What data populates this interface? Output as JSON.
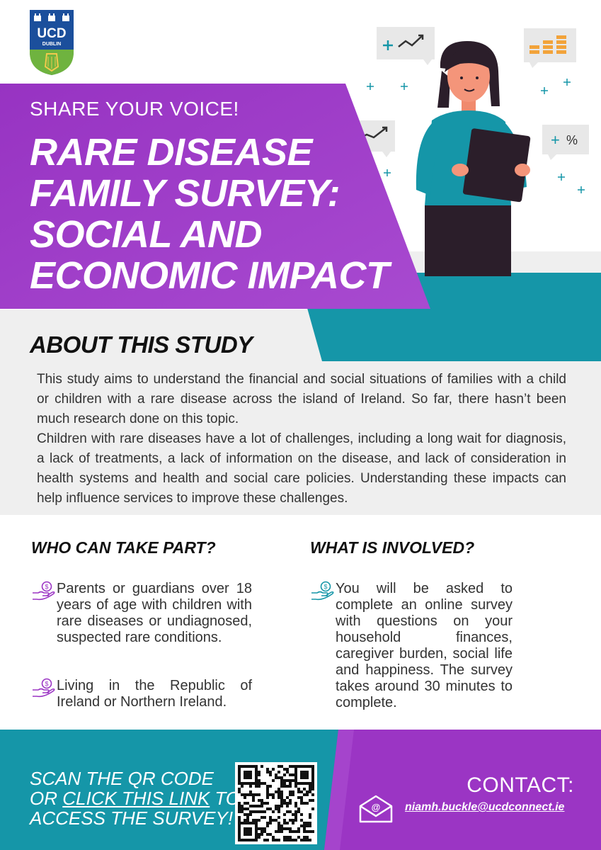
{
  "logo": {
    "text": "UCD",
    "subtext": "DUBLIN"
  },
  "header": {
    "kicker": "SHARE YOUR VOICE!",
    "title_lines": [
      "RARE DISEASE",
      "FAMILY SURVEY:",
      "SOCIAL AND",
      "ECONOMIC IMPACT"
    ]
  },
  "illustration": {
    "chips": [
      "+",
      "%"
    ]
  },
  "about": {
    "title": "ABOUT THIS STUDY",
    "paragraph1": "This study aims to understand the financial and social situations of families with a child or children with a rare disease across the island of Ireland. So far, there hasn’t been much research done on this topic.",
    "paragraph2": "Children with rare diseases have a lot of challenges, including a long wait for diagnosis, a lack of treatments, a lack of information on the disease, and lack of consideration in health systems and health and social care policies. Understanding these impacts can help influence services to improve these challenges."
  },
  "who": {
    "title": "WHO CAN TAKE PART?",
    "items": [
      "Parents or guardians over 18 years of age with children with rare diseases or undiagnosed, suspected rare conditions.",
      "Living in the Republic of Ireland or Northern Ireland."
    ]
  },
  "what": {
    "title": "WHAT IS INVOLVED?",
    "items": [
      "You will be asked to complete an online survey with questions on your household finances, caregiver burden, social life and happiness. The survey takes around 30 minutes to complete."
    ]
  },
  "footer": {
    "scan_line1": "SCAN THE QR CODE",
    "scan_or": "OR ",
    "scan_link": "CLICK THIS LINK",
    "scan_to": " TO",
    "scan_line3": "ACCESS THE SURVEY!",
    "contact_label": "CONTACT:",
    "email": "niamh.buckle@ucdconnect.ie"
  },
  "colors": {
    "purple": "#9b35c4",
    "purple_light": "#a544cc",
    "teal": "#1596a8",
    "grey": "#efefef",
    "ucd_blue": "#1b4f9c",
    "ucd_green": "#6fb33f"
  }
}
